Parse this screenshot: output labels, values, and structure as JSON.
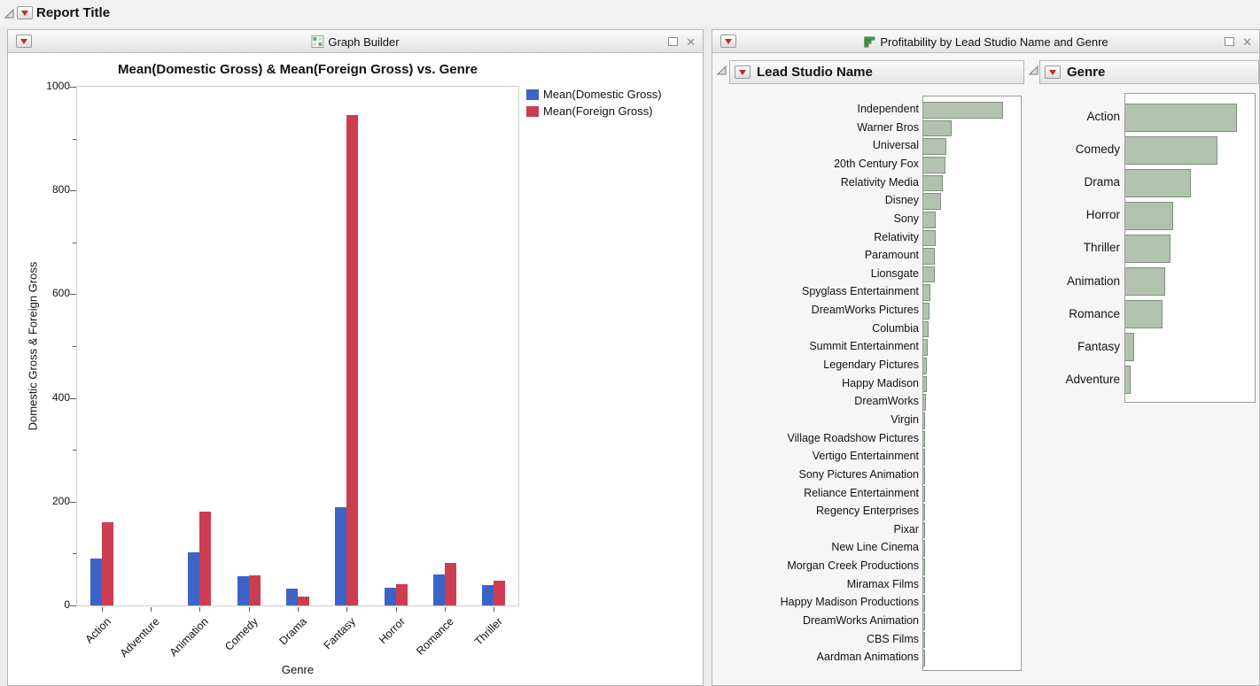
{
  "report": {
    "title": "Report Title"
  },
  "icons": {
    "close": "✕"
  },
  "graph_builder": {
    "window_title": "Graph Builder",
    "chart_title": "Mean(Domestic Gross) & Mean(Foreign Gross) vs. Genre",
    "xlabel": "Genre",
    "ylabel": "Domestic Gross & Foreign Gross"
  },
  "profitability": {
    "window_title": "Profitability by Lead Studio Name and Genre",
    "studio_panel_title": "Lead Studio Name",
    "genre_panel_title": "Genre"
  },
  "colors": {
    "domestic_blue": "#3c63c8",
    "foreign_red": "#cc3d4f",
    "hbar_fill": "#b1c3af",
    "hbar_border": "#7e907d"
  },
  "chart_data": [
    {
      "type": "bar",
      "title": "Mean(Domestic Gross) & Mean(Foreign Gross) vs. Genre",
      "categories": [
        "Action",
        "Adventure",
        "Animation",
        "Comedy",
        "Drama",
        "Fantasy",
        "Horror",
        "Romance",
        "Thriller"
      ],
      "series": [
        {
          "name": "Mean(Domestic Gross)",
          "color": "#3c63c8",
          "values": [
            91,
            0,
            103,
            56,
            33,
            190,
            34,
            60,
            40
          ]
        },
        {
          "name": "Mean(Foreign Gross)",
          "color": "#cc3d4f",
          "values": [
            160,
            0,
            181,
            58,
            17,
            945,
            41,
            82,
            48
          ]
        }
      ],
      "xlabel": "Genre",
      "ylabel": "Domestic Gross & Foreign Gross",
      "ylim": [
        0,
        1000
      ],
      "yticks": [
        0,
        200,
        400,
        600,
        800,
        1000
      ],
      "legend_position": "top-right",
      "grid": false
    },
    {
      "type": "bar",
      "orientation": "horizontal",
      "title": "Lead Studio Name",
      "categories": [
        "Independent",
        "Warner Bros",
        "Universal",
        "20th Century Fox",
        "Relativity Media",
        "Disney",
        "Sony",
        "Relativity",
        "Paramount",
        "Lionsgate",
        "Spyglass Entertainment",
        "DreamWorks Pictures",
        "Columbia",
        "Summit Entertainment",
        "Legendary Pictures",
        "Happy Madison",
        "DreamWorks",
        "Virgin",
        "Village Roadshow Pictures",
        "Vertigo Entertainment",
        "Sony Pictures Animation",
        "Reliance Entertainment",
        "Regency Enterprises",
        "Pixar",
        "New Line Cinema",
        "Morgan Creek Productions",
        "Miramax Films",
        "Happy Madison Productions",
        "DreamWorks Animation",
        "CBS Films",
        "Aardman Animations"
      ],
      "values": [
        82,
        29,
        24,
        23,
        20,
        18,
        13,
        12.5,
        12,
        11.5,
        7,
        6,
        5,
        4.5,
        4,
        3.5,
        3,
        2.2,
        2.2,
        2,
        2,
        1.8,
        1.6,
        1.6,
        1.3,
        1.1,
        1.1,
        1.1,
        1.1,
        0.9,
        0.9
      ],
      "xlim": [
        0,
        100
      ],
      "axis_labels_visible": false,
      "grid": false
    },
    {
      "type": "bar",
      "orientation": "horizontal",
      "title": "Genre",
      "categories": [
        "Action",
        "Comedy",
        "Drama",
        "Horror",
        "Thriller",
        "Animation",
        "Romance",
        "Fantasy",
        "Adventure"
      ],
      "values": [
        86,
        71,
        51,
        37,
        35,
        31,
        29,
        7,
        4
      ],
      "xlim": [
        0,
        100
      ],
      "axis_labels_visible": false,
      "grid": false
    }
  ]
}
